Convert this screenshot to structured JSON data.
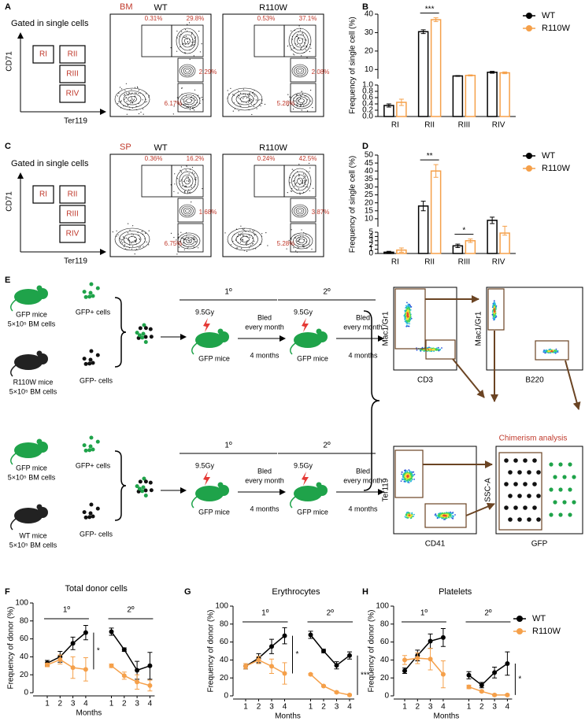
{
  "panel_labels": [
    "A",
    "B",
    "C",
    "D",
    "E",
    "F",
    "G",
    "H"
  ],
  "schematic": {
    "gate_text": "Gated in single cells",
    "y_axis": "CD71",
    "x_axis": "Ter119",
    "gates": [
      "RI",
      "RII",
      "RIII",
      "RIV"
    ]
  },
  "flow": [
    {
      "tissue": "BM",
      "plots": [
        {
          "title": "WT",
          "percentages": [
            "0.31%",
            "29.8%",
            "2.29%",
            "6.17%"
          ]
        },
        {
          "title": "R110W",
          "percentages": [
            "0.53%",
            "37.1%",
            "2.08%",
            "5.28%"
          ]
        }
      ]
    },
    {
      "tissue": "SP",
      "plots": [
        {
          "title": "WT",
          "percentages": [
            "0.36%",
            "16.2%",
            "1.68%",
            "6.75%"
          ]
        },
        {
          "title": "R110W",
          "percentages": [
            "0.24%",
            "42.5%",
            "3.87%",
            "5.28%"
          ]
        }
      ]
    }
  ],
  "diagram": {
    "rows": [
      {
        "donor_gfp": [
          "GFP mice",
          "5×10⁵ BM  cells"
        ],
        "gfp_pos": "GFP+ cells",
        "donor_other": [
          "R110W mice",
          "5×10⁵ BM cells"
        ],
        "gfp_neg": "GFP- cells"
      },
      {
        "donor_gfp": [
          "GFP mice",
          "5×10⁵ BM  cells"
        ],
        "gfp_pos": "GFP+ cells",
        "donor_other": [
          "WT mice",
          "5×10⁵ BM cells"
        ],
        "gfp_neg": "GFP- cells"
      }
    ],
    "stages": [
      {
        "label": "1º",
        "dose": "9.5Gy",
        "recipient": "GFP mice",
        "bleed": [
          "Bled",
          "every month"
        ],
        "duration": "4 months"
      },
      {
        "label": "2º",
        "dose": "9.5Gy",
        "recipient": "GFP mice",
        "bleed": [
          "Bled",
          "every month"
        ],
        "duration": "4 months"
      }
    ],
    "flow_axes": [
      {
        "y": "Mac1/Gr1",
        "x": "CD3"
      },
      {
        "y": "Mac1/Gr1",
        "x": "B220"
      },
      {
        "y": "Ter119",
        "x": "CD41"
      },
      {
        "y": "SSC-A",
        "x": "GFP"
      }
    ],
    "chimerism": "Chimerism analysis"
  },
  "chart_data": [
    {
      "type": "bar",
      "ylabel": "Frequency of  single cell (%)",
      "categories": [
        "RI",
        "RII",
        "RIII",
        "RIV"
      ],
      "series": [
        {
          "name": "WT",
          "color": "#000000",
          "values": [
            0.35,
            30.5,
            6.5,
            8.5
          ],
          "errors": [
            0.05,
            1,
            0.2,
            0.5
          ]
        },
        {
          "name": "R110W",
          "color": "#f5a04a",
          "values": [
            0.45,
            37,
            6.8,
            8.2
          ],
          "errors": [
            0.1,
            1,
            0.3,
            0.5
          ]
        }
      ],
      "axis_segments": [
        {
          "ylim": [
            0,
            1
          ],
          "yticks": [
            {
              "value": 0,
              "label": "0.0"
            },
            0.2,
            0.4,
            0.6,
            0.8,
            {
              "value": 1,
              "label": "1.0"
            }
          ]
        },
        {
          "ylim": [
            5,
            40
          ],
          "yticks": [
            10,
            20,
            30,
            40
          ]
        }
      ],
      "significance": [
        null,
        "***",
        null,
        null
      ],
      "legend": "upper right"
    },
    {
      "type": "bar",
      "ylabel": "Frequency of  single cell (%)",
      "categories": [
        "RI",
        "RII",
        "RIII",
        "RIV"
      ],
      "series": [
        {
          "name": "WT",
          "color": "#000000",
          "values": [
            0.3,
            18,
            1.8,
            9
          ],
          "errors": [
            0.2,
            3,
            0.4,
            2
          ]
        },
        {
          "name": "R110W",
          "color": "#f5a04a",
          "values": [
            0.8,
            40,
            3,
            4.8
          ],
          "errors": [
            0.5,
            4,
            0.4,
            0.5
          ]
        }
      ],
      "axis_segments": [
        {
          "ylim": [
            0,
            5
          ],
          "yticks": [
            0,
            1,
            2,
            3,
            4,
            5
          ]
        },
        {
          "ylim": [
            5,
            50
          ],
          "yticks": [
            10,
            15,
            20,
            25,
            30,
            35,
            40,
            45,
            50
          ]
        }
      ],
      "significance": [
        null,
        "**",
        "*",
        null
      ],
      "legend": "upper right"
    },
    {
      "type": "line",
      "title": "Total donor cells",
      "ylabel": "Frequency of donor (%)",
      "xlabel": "Months",
      "categories": [
        "1",
        "2",
        "3",
        "4",
        null,
        "1",
        "2",
        "3",
        "4"
      ],
      "groups": [
        "1º",
        "2º"
      ],
      "series": [
        {
          "name": "WT",
          "color": "#000000",
          "values": [
            33,
            40,
            55,
            67,
            null,
            68,
            48,
            25,
            30
          ],
          "errors": [
            3,
            6,
            7,
            8,
            null,
            4,
            2,
            10,
            15
          ]
        },
        {
          "name": "R110W",
          "color": "#f5a04a",
          "values": [
            31,
            37,
            28,
            26,
            null,
            30,
            19,
            12,
            8
          ],
          "errors": [
            2,
            5,
            12,
            13,
            null,
            2,
            4,
            8,
            6
          ]
        }
      ],
      "ylim": [
        0,
        100
      ],
      "yticks": [
        0,
        20,
        40,
        60,
        80,
        100
      ],
      "significance": [
        null,
        null,
        null,
        "*",
        null,
        null,
        null,
        null,
        null
      ]
    },
    {
      "type": "line",
      "title": "Erythrocytes",
      "ylabel": "Frequency of donor (%)",
      "xlabel": "Months",
      "categories": [
        "1",
        "2",
        "3",
        "4",
        null,
        "1",
        "2",
        "3",
        "4"
      ],
      "groups": [
        "1º",
        "2º"
      ],
      "series": [
        {
          "name": "WT",
          "color": "#000000",
          "values": [
            33,
            42,
            55,
            67,
            null,
            68,
            50,
            34,
            45
          ],
          "errors": [
            3,
            5,
            8,
            9,
            null,
            4,
            2,
            4,
            4
          ]
        },
        {
          "name": "R110W",
          "color": "#f5a04a",
          "values": [
            33,
            40,
            33,
            25,
            null,
            24,
            11,
            4,
            1
          ],
          "errors": [
            3,
            4,
            8,
            12,
            null,
            1,
            1,
            1,
            1
          ]
        }
      ],
      "ylim": [
        0,
        100
      ],
      "yticks": [
        0,
        20,
        40,
        60,
        80,
        100
      ],
      "significance": [
        null,
        null,
        null,
        "*",
        null,
        null,
        null,
        null,
        "***"
      ]
    },
    {
      "type": "line",
      "title": "Platelets",
      "ylabel": "Frequency of donor (%)",
      "xlabel": "Months",
      "categories": [
        "1",
        "2",
        "3",
        "4",
        null,
        "1",
        "2",
        "3",
        "4"
      ],
      "groups": [
        "1º",
        "2º"
      ],
      "series": [
        {
          "name": "WT",
          "color": "#000000",
          "values": [
            28,
            45,
            61,
            65,
            null,
            23,
            12,
            26,
            36
          ],
          "errors": [
            3,
            6,
            8,
            10,
            null,
            4,
            3,
            6,
            13
          ]
        },
        {
          "name": "R110W",
          "color": "#f5a04a",
          "values": [
            40,
            42,
            41,
            24,
            null,
            10,
            5,
            1,
            1
          ],
          "errors": [
            5,
            6,
            12,
            15,
            null,
            2,
            1,
            1,
            1
          ]
        }
      ],
      "ylim": [
        0,
        100
      ],
      "yticks": [
        0,
        20,
        40,
        60,
        80,
        100
      ],
      "significance": [
        null,
        null,
        null,
        null,
        null,
        null,
        null,
        null,
        "*"
      ],
      "legend": "upper right"
    }
  ]
}
